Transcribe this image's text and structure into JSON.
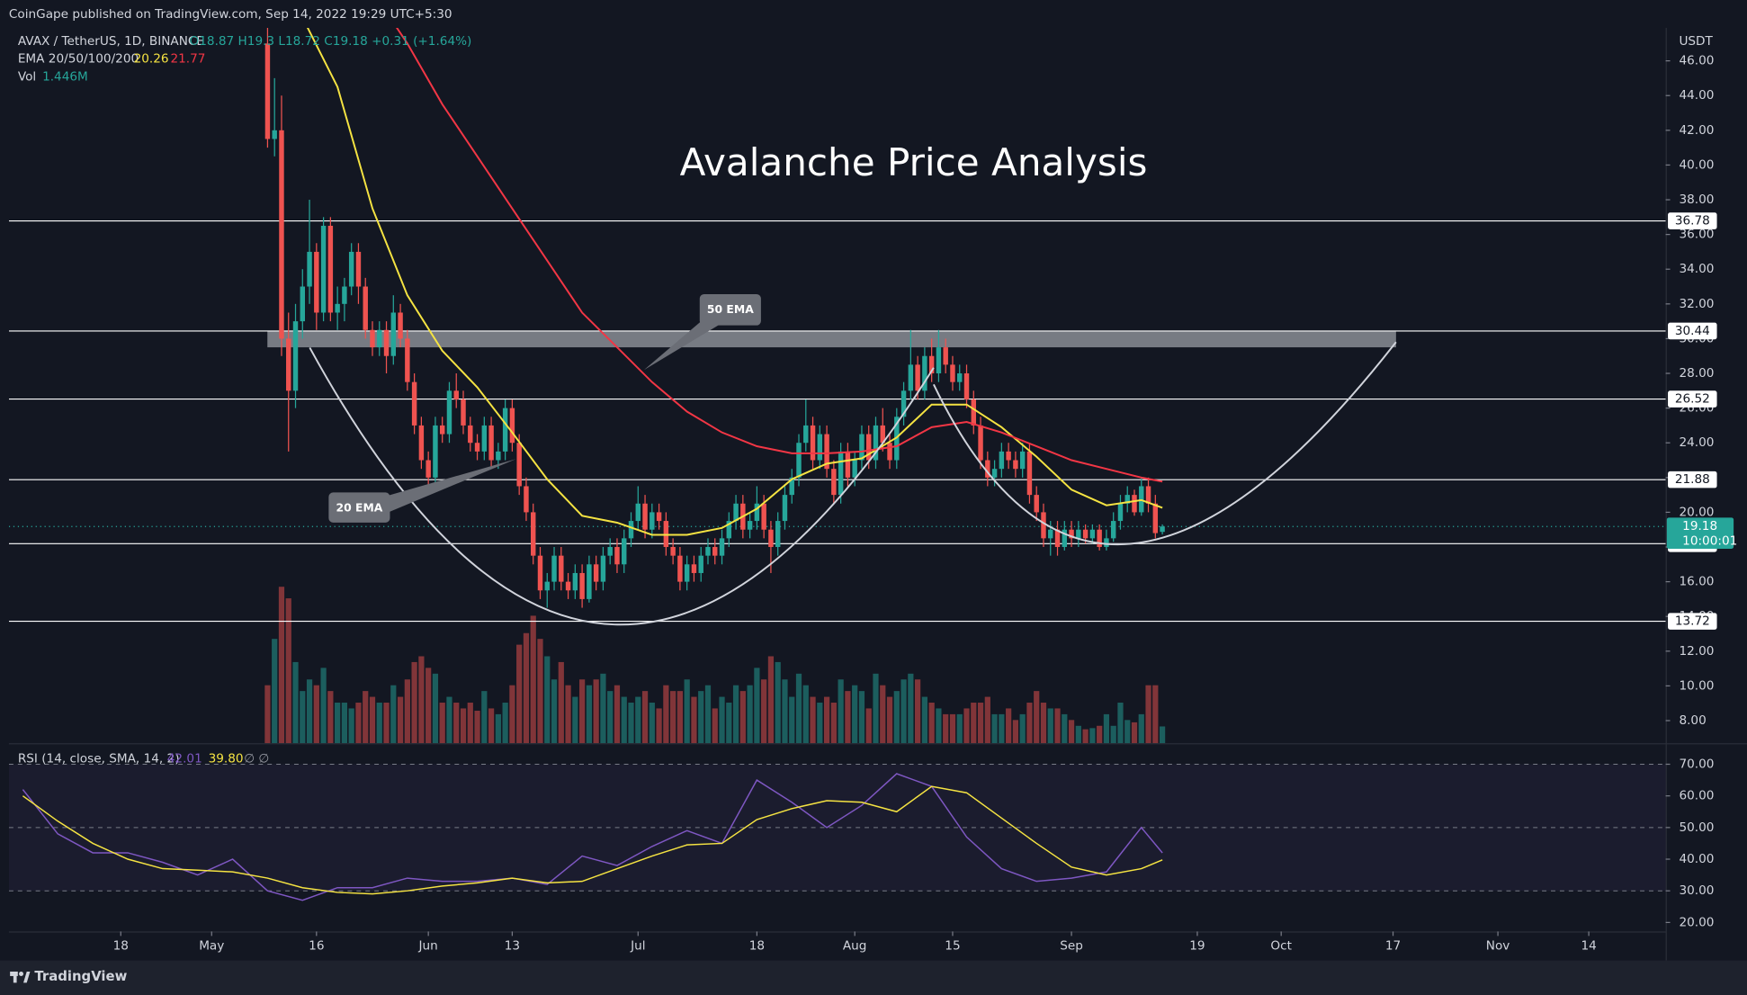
{
  "header": {
    "publisher": "CoinGape published on TradingView.com, Sep 14, 2022 19:29 UTC+5:30",
    "symbol": "AVAX / TetherUS, 1D, BINANCE",
    "ohlc": "O18.87 H19.3 L18.72 C19.18 +0.31 (+1.64%)",
    "ema_legend": "EMA 20/50/100/200",
    "ema_values": [
      "20.26",
      "21.77"
    ],
    "vol_legend": "Vol",
    "vol_value": "1.446M",
    "rsi_legend": "RSI (14, close, SMA, 14, 2)",
    "rsi_values": [
      "42.01",
      "39.80"
    ],
    "rsi_extra": "∅  ∅"
  },
  "footer": {
    "brand": "TradingView"
  },
  "chart_data": {
    "type": "candlestick",
    "title": "Avalanche Price Analysis",
    "y_unit": "USDT",
    "up_color": "#26a69a",
    "down_color": "#ef5350",
    "xlim": [
      "04-02",
      "11-25"
    ],
    "xticks": [
      {
        "value": "04-18",
        "label": "18"
      },
      {
        "value": "05-01",
        "label": "May"
      },
      {
        "value": "05-16",
        "label": "16"
      },
      {
        "value": "06-01",
        "label": "Jun"
      },
      {
        "value": "06-13",
        "label": "13"
      },
      {
        "value": "07-01",
        "label": "Jul"
      },
      {
        "value": "07-18",
        "label": "18"
      },
      {
        "value": "08-01",
        "label": "Aug"
      },
      {
        "value": "08-15",
        "label": "15"
      },
      {
        "value": "09-01",
        "label": "Sep"
      },
      {
        "value": "09-19",
        "label": "19"
      },
      {
        "value": "10-01",
        "label": "Oct"
      },
      {
        "value": "10-17",
        "label": "17"
      },
      {
        "value": "11-01",
        "label": "Nov"
      },
      {
        "value": "11-14",
        "label": "14"
      }
    ],
    "ylim": [
      6.7,
      47.9
    ],
    "yticks": [
      {
        "value": 8,
        "label": "8.00"
      },
      {
        "value": 10,
        "label": "10.00"
      },
      {
        "value": 12,
        "label": "12.00"
      },
      {
        "value": 14,
        "label": "14.00"
      },
      {
        "value": 16,
        "label": "16.00"
      },
      {
        "value": 18,
        "label": "18.00"
      },
      {
        "value": 20,
        "label": "20.00"
      },
      {
        "value": 22,
        "label": "22.00"
      },
      {
        "value": 24,
        "label": "24.00"
      },
      {
        "value": 26,
        "label": "26.00"
      },
      {
        "value": 28,
        "label": "28.00"
      },
      {
        "value": 30,
        "label": "30.00"
      },
      {
        "value": 32,
        "label": "32.00"
      },
      {
        "value": 34,
        "label": "34.00"
      },
      {
        "value": 36,
        "label": "36.00"
      },
      {
        "value": 38,
        "label": "38.00"
      },
      {
        "value": 40,
        "label": "40.00"
      },
      {
        "value": 42,
        "label": "42.00"
      },
      {
        "value": 44,
        "label": "44.00"
      },
      {
        "value": 46,
        "label": "46.00"
      }
    ],
    "levels": [
      36.78,
      30.44,
      26.52,
      21.88,
      18.19,
      13.72
    ],
    "level_color": "#ffffff",
    "resistance_zone": [
      29.5,
      30.44
    ],
    "last_price": 19.18,
    "countdown": "10:00:01",
    "x": [
      "05-09",
      "05-10",
      "05-11",
      "05-12",
      "05-13",
      "05-14",
      "05-15",
      "05-16",
      "05-17",
      "05-18",
      "05-19",
      "05-20",
      "05-21",
      "05-22",
      "05-23",
      "05-24",
      "05-25",
      "05-26",
      "05-27",
      "05-28",
      "05-29",
      "05-30",
      "05-31",
      "06-01",
      "06-02",
      "06-03",
      "06-04",
      "06-05",
      "06-06",
      "06-07",
      "06-08",
      "06-09",
      "06-10",
      "06-11",
      "06-12",
      "06-13",
      "06-14",
      "06-15",
      "06-16",
      "06-17",
      "06-18",
      "06-19",
      "06-20",
      "06-21",
      "06-22",
      "06-23",
      "06-24",
      "06-25",
      "06-26",
      "06-27",
      "06-28",
      "06-29",
      "06-30",
      "07-01",
      "07-02",
      "07-03",
      "07-04",
      "07-05",
      "07-06",
      "07-07",
      "07-08",
      "07-09",
      "07-10",
      "07-11",
      "07-12",
      "07-13",
      "07-14",
      "07-15",
      "07-16",
      "07-17",
      "07-18",
      "07-19",
      "07-20",
      "07-21",
      "07-22",
      "07-23",
      "07-24",
      "07-25",
      "07-26",
      "07-27",
      "07-28",
      "07-29",
      "07-30",
      "07-31",
      "08-01",
      "08-02",
      "08-03",
      "08-04",
      "08-05",
      "08-06",
      "08-07",
      "08-08",
      "08-09",
      "08-10",
      "08-11",
      "08-12",
      "08-13",
      "08-14",
      "08-15",
      "08-16",
      "08-17",
      "08-18",
      "08-19",
      "08-20",
      "08-21",
      "08-22",
      "08-23",
      "08-24",
      "08-25",
      "08-26",
      "08-27",
      "08-28",
      "08-29",
      "08-30",
      "08-31",
      "09-01",
      "09-02",
      "09-03",
      "09-04",
      "09-05",
      "09-06",
      "09-07",
      "09-08",
      "09-09",
      "09-10",
      "09-11",
      "09-12",
      "09-13",
      "09-14"
    ],
    "candles": [
      [
        47,
        48,
        41,
        41.5
      ],
      [
        41.5,
        45,
        40.5,
        42
      ],
      [
        42,
        44,
        29,
        30
      ],
      [
        30,
        31.5,
        23.5,
        27
      ],
      [
        27,
        32,
        26,
        31
      ],
      [
        31,
        34,
        30,
        33
      ],
      [
        33,
        38,
        32,
        35
      ],
      [
        35,
        35.5,
        30.5,
        31.5
      ],
      [
        31.5,
        37,
        31,
        36.5
      ],
      [
        36.5,
        37,
        31,
        31.5
      ],
      [
        31.5,
        33,
        30.5,
        32
      ],
      [
        32,
        33.5,
        31,
        33
      ],
      [
        33,
        35.5,
        32.5,
        35
      ],
      [
        35,
        35.5,
        32,
        33
      ],
      [
        33,
        33.5,
        30,
        30.5
      ],
      [
        30.5,
        31,
        29,
        29.5
      ],
      [
        29.5,
        31,
        29,
        30.5
      ],
      [
        30.5,
        31,
        28,
        29
      ],
      [
        29,
        32.5,
        28.5,
        31.5
      ],
      [
        31.5,
        32,
        29.5,
        30
      ],
      [
        30,
        30.5,
        27,
        27.5
      ],
      [
        27.5,
        28,
        24.5,
        25
      ],
      [
        25,
        25.5,
        22.5,
        23
      ],
      [
        23,
        23.5,
        21.5,
        22
      ],
      [
        22,
        25.5,
        21.5,
        25
      ],
      [
        25,
        25.5,
        24,
        24.5
      ],
      [
        24.5,
        27.5,
        24,
        27
      ],
      [
        27,
        28,
        26,
        26.5
      ],
      [
        26.5,
        27,
        24.5,
        25
      ],
      [
        25,
        25.5,
        23.5,
        24
      ],
      [
        24,
        24.5,
        23,
        23.5
      ],
      [
        23.5,
        25.5,
        23,
        25
      ],
      [
        25,
        25.5,
        22.5,
        23
      ],
      [
        23,
        24,
        22.5,
        23.5
      ],
      [
        23.5,
        26.5,
        23,
        26
      ],
      [
        26,
        26.5,
        23.5,
        24
      ],
      [
        24,
        24.5,
        21,
        21.5
      ],
      [
        21.5,
        22,
        19.5,
        20
      ],
      [
        20,
        20.5,
        17,
        17.5
      ],
      [
        17.5,
        18,
        15,
        15.5
      ],
      [
        15.5,
        16.5,
        14.5,
        16
      ],
      [
        16,
        18,
        15.5,
        17.5
      ],
      [
        17.5,
        18,
        15.5,
        16
      ],
      [
        16,
        16.5,
        15,
        15.5
      ],
      [
        15.5,
        17,
        15,
        16.5
      ],
      [
        16.5,
        17,
        14.5,
        15
      ],
      [
        15,
        17.5,
        14.8,
        17
      ],
      [
        17,
        17.5,
        15.5,
        16
      ],
      [
        16,
        18,
        15.5,
        17.5
      ],
      [
        17.5,
        18.5,
        17,
        18
      ],
      [
        18,
        18.5,
        16.5,
        17
      ],
      [
        17,
        19,
        16.5,
        18.5
      ],
      [
        18.5,
        20,
        18,
        19.5
      ],
      [
        19.5,
        21.5,
        19,
        20.5
      ],
      [
        20.5,
        21,
        18.5,
        19
      ],
      [
        19,
        20.5,
        18.5,
        20
      ],
      [
        20,
        20.5,
        19,
        19.5
      ],
      [
        19.5,
        20,
        17.5,
        18
      ],
      [
        18,
        18.5,
        17,
        17.5
      ],
      [
        17.5,
        18,
        15.5,
        16
      ],
      [
        16,
        17.5,
        15.5,
        17
      ],
      [
        17,
        17.5,
        16,
        16.5
      ],
      [
        16.5,
        18,
        16,
        17.5
      ],
      [
        17.5,
        18.5,
        17,
        18
      ],
      [
        18,
        18.5,
        17,
        17.5
      ],
      [
        17.5,
        19,
        17,
        18.5
      ],
      [
        18.5,
        20,
        18,
        19.5
      ],
      [
        19.5,
        21,
        19,
        20.5
      ],
      [
        20.5,
        21,
        18.5,
        19
      ],
      [
        19,
        20,
        18.5,
        19.5
      ],
      [
        19.5,
        21.5,
        19,
        20.5
      ],
      [
        20.5,
        21,
        18.5,
        19
      ],
      [
        19,
        19.5,
        16.5,
        18
      ],
      [
        18,
        20,
        17.5,
        19.5
      ],
      [
        19.5,
        21.5,
        19,
        21
      ],
      [
        21,
        22.5,
        20.5,
        22
      ],
      [
        22,
        24.5,
        21.5,
        24
      ],
      [
        24,
        26.5,
        23.5,
        25
      ],
      [
        25,
        25.5,
        22.5,
        23
      ],
      [
        23,
        25,
        22.5,
        24.5
      ],
      [
        24.5,
        25,
        22,
        22.5
      ],
      [
        22.5,
        23,
        20.5,
        21
      ],
      [
        21,
        24,
        20.5,
        23.5
      ],
      [
        23.5,
        24,
        21.5,
        22
      ],
      [
        22,
        23.5,
        21.5,
        23
      ],
      [
        23,
        25,
        22.5,
        24.5
      ],
      [
        24.5,
        25,
        22.5,
        23
      ],
      [
        23,
        25.5,
        22.5,
        25
      ],
      [
        25,
        26,
        23.5,
        24
      ],
      [
        24,
        24.5,
        22.5,
        23
      ],
      [
        23,
        26,
        22.5,
        25.5
      ],
      [
        25.5,
        27.5,
        25,
        27
      ],
      [
        27,
        30.5,
        26.5,
        28.5
      ],
      [
        28.5,
        29,
        26.5,
        27
      ],
      [
        27,
        29.5,
        26.5,
        29
      ],
      [
        29,
        30,
        27.5,
        28
      ],
      [
        28,
        30.5,
        27.5,
        29.5
      ],
      [
        29.5,
        30,
        28,
        28.5
      ],
      [
        28.5,
        29,
        27,
        27.5
      ],
      [
        27.5,
        28.5,
        27,
        28
      ],
      [
        28,
        28.5,
        26,
        26.5
      ],
      [
        26.5,
        27,
        24.5,
        25
      ],
      [
        25,
        25.5,
        22.5,
        23
      ],
      [
        23,
        23.5,
        21.5,
        22
      ],
      [
        22,
        23,
        21.5,
        22.5
      ],
      [
        22.5,
        24,
        22,
        23.5
      ],
      [
        23.5,
        24,
        22.5,
        23
      ],
      [
        23,
        23.5,
        22,
        22.5
      ],
      [
        22.5,
        24,
        22,
        23.5
      ],
      [
        23.5,
        24,
        20.5,
        21
      ],
      [
        21,
        21.5,
        19.5,
        20
      ],
      [
        20,
        20.5,
        18,
        18.5
      ],
      [
        18.5,
        19.5,
        17.5,
        19
      ],
      [
        19,
        19.5,
        17.5,
        18
      ],
      [
        18,
        19.5,
        17.8,
        19
      ],
      [
        19,
        19.5,
        18,
        18.5
      ],
      [
        18.5,
        19.5,
        18,
        19
      ],
      [
        19,
        19.3,
        18.2,
        18.5
      ],
      [
        18.5,
        19.3,
        18.2,
        19
      ],
      [
        19,
        19.3,
        17.8,
        18
      ],
      [
        18,
        19,
        17.8,
        18.5
      ],
      [
        18.5,
        20,
        18.3,
        19.5
      ],
      [
        19.5,
        21,
        19,
        20.5
      ],
      [
        20.5,
        21.5,
        20,
        21
      ],
      [
        21,
        21.3,
        19.8,
        20
      ],
      [
        20,
        22,
        19.8,
        21.5
      ],
      [
        21.5,
        22,
        20,
        20.5
      ],
      [
        20.5,
        21,
        18.5,
        18.8
      ],
      [
        18.87,
        19.3,
        18.72,
        19.18
      ]
    ],
    "volume": [
      5,
      9,
      13.5,
      12.5,
      7,
      4.5,
      5.5,
      5,
      6.5,
      4.5,
      3.5,
      3.5,
      3,
      3.5,
      4.5,
      4,
      3.5,
      3.5,
      5,
      4,
      5.5,
      7,
      7.5,
      6.5,
      6,
      3.5,
      4,
      3.5,
      3,
      3.5,
      2.8,
      4.5,
      3,
      2.5,
      3.5,
      5,
      8.5,
      9.5,
      11,
      9,
      7.5,
      5.5,
      7,
      5,
      4,
      5.5,
      5,
      5.5,
      6,
      4.5,
      5,
      4,
      3.5,
      4,
      4.5,
      3.5,
      3,
      5,
      4.5,
      4.5,
      5.5,
      4,
      4.5,
      5,
      3,
      4,
      3.5,
      5,
      4.5,
      5,
      6.5,
      5.5,
      7.5,
      7,
      5.5,
      4,
      6,
      5,
      4,
      3.5,
      4,
      3.5,
      5.5,
      4.5,
      5,
      4.5,
      3,
      6,
      5,
      4,
      4.5,
      5.5,
      6,
      5.5,
      4,
      3.5,
      3,
      2.5,
      2.5,
      2.5,
      3,
      3.5,
      3.5,
      4,
      2.5,
      2.5,
      3,
      2,
      2.5,
      3.5,
      4.5,
      3.5,
      3,
      3,
      2.5,
      2,
      1.5,
      1.2,
      1.3,
      1.5,
      2.5,
      1.5,
      3.5,
      2,
      1.8,
      2.5,
      5,
      5,
      1.446
    ],
    "indicators": {
      "x": [
        "04-04",
        "04-09",
        "04-14",
        "04-19",
        "04-24",
        "04-29",
        "05-04",
        "05-09",
        "05-14",
        "05-19",
        "05-24",
        "05-29",
        "06-03",
        "06-08",
        "06-13",
        "06-18",
        "06-23",
        "06-28",
        "07-03",
        "07-08",
        "07-13",
        "07-18",
        "07-23",
        "07-28",
        "08-02",
        "08-07",
        "08-12",
        "08-17",
        "08-22",
        "08-27",
        "09-01",
        "09-06",
        "09-11",
        "09-14"
      ],
      "series": [
        {
          "name": "20 EMA",
          "color": "#f5e342",
          "values": [
            null,
            null,
            null,
            null,
            null,
            null,
            null,
            52,
            48.5,
            44.5,
            37.5,
            32.5,
            29.3,
            27.2,
            24.6,
            21.9,
            19.8,
            19.4,
            18.7,
            18.7,
            19.1,
            20.2,
            21.9,
            22.8,
            23.1,
            24.3,
            26.2,
            26.2,
            24.9,
            23.2,
            21.3,
            20.4,
            20.7,
            20.26
          ]
        },
        {
          "name": "50 EMA",
          "color": "#f23645",
          "values": [
            null,
            null,
            null,
            null,
            null,
            null,
            null,
            60,
            56.5,
            53,
            50,
            47,
            43.5,
            40.5,
            37.5,
            34.5,
            31.5,
            29.5,
            27.5,
            25.8,
            24.6,
            23.8,
            23.4,
            23.4,
            23.5,
            23.8,
            24.9,
            25.2,
            24.6,
            23.8,
            23,
            22.5,
            22,
            21.77
          ]
        }
      ]
    },
    "rsi": {
      "ylim": [
        8.7,
        76.3
      ],
      "yticks": [
        {
          "value": 20,
          "label": "20.00"
        },
        {
          "value": 30,
          "label": "30.00"
        },
        {
          "value": 40,
          "label": "40.00"
        },
        {
          "value": 50,
          "label": "50.00"
        },
        {
          "value": 60,
          "label": "60.00"
        },
        {
          "value": 70,
          "label": "70.00"
        }
      ],
      "band": [
        30,
        70
      ],
      "dashed": [
        30,
        50,
        70
      ],
      "series": [
        {
          "color": "#7e57c2",
          "values": [
            62,
            48,
            42,
            42,
            39,
            35,
            40,
            30,
            27,
            31,
            31,
            34,
            33,
            33,
            34,
            32,
            41,
            38,
            44,
            49,
            45,
            65,
            58,
            50,
            57,
            67,
            63,
            47,
            37,
            33,
            34,
            36,
            50,
            42.01
          ]
        },
        {
          "color": "#f5e342",
          "values": [
            60,
            52,
            45,
            40,
            37,
            36.5,
            36,
            34,
            31,
            29.5,
            29,
            30,
            31.5,
            32.5,
            34,
            32.5,
            33,
            37,
            41,
            44.5,
            45,
            52.5,
            56,
            58.5,
            58,
            55,
            63,
            61,
            53,
            45,
            37.5,
            35,
            37,
            39.8
          ]
        }
      ]
    }
  }
}
